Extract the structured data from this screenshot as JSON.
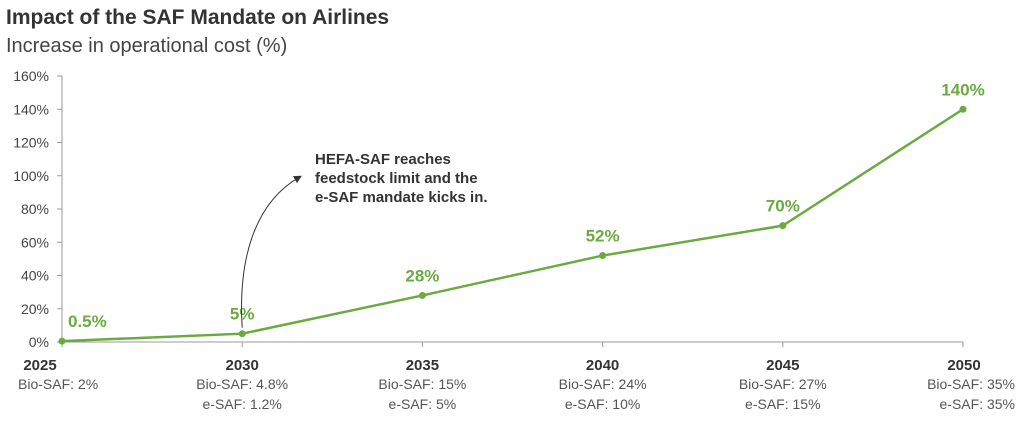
{
  "chart_data": {
    "type": "line",
    "title": "Impact of the SAF Mandate on Airlines",
    "subtitle": "Increase in operational cost (%)",
    "categories": [
      "2025",
      "2030",
      "2035",
      "2040",
      "2045",
      "2050"
    ],
    "values": [
      0.5,
      5,
      28,
      52,
      70,
      140
    ],
    "data_labels": [
      "0.5%",
      "5%",
      "28%",
      "52%",
      "70%",
      "140%"
    ],
    "category_sublabels": [
      [
        "Bio-SAF: 2%"
      ],
      [
        "Bio-SAF: 4.8%",
        "e-SAF: 1.2%"
      ],
      [
        "Bio-SAF: 15%",
        "e-SAF: 5%"
      ],
      [
        "Bio-SAF: 24%",
        "e-SAF: 10%"
      ],
      [
        "Bio-SAF: 27%",
        "e-SAF: 15%"
      ],
      [
        "Bio-SAF: 35%",
        "e-SAF: 35%"
      ]
    ],
    "ylim": [
      0,
      160
    ],
    "yticks": [
      0,
      20,
      40,
      60,
      80,
      100,
      120,
      140,
      160
    ],
    "ytick_labels": [
      "0%",
      "20%",
      "40%",
      "60%",
      "80%",
      "100%",
      "120%",
      "140%",
      "160%"
    ],
    "grid": false,
    "annotation": {
      "lines": [
        "HEFA-SAF reaches",
        "feedstock limit and the",
        "e-SAF mandate kicks in."
      ],
      "points_to": "2030"
    },
    "colors": {
      "series": "#6aab3f",
      "axis": "#999999"
    }
  }
}
